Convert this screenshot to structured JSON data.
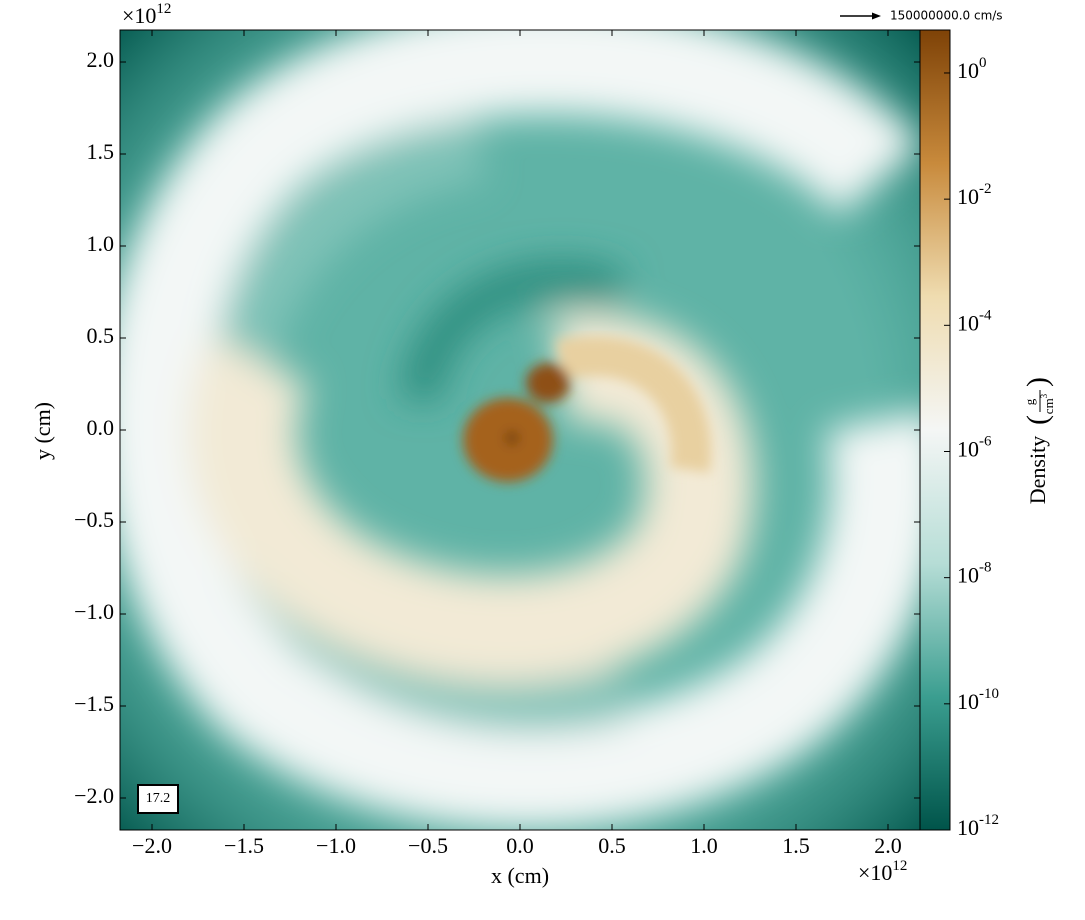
{
  "chart_data": {
    "type": "image",
    "xlabel": "x  (cm)",
    "ylabel": "y  (cm)",
    "x_offset": {
      "base": "×10",
      "exponent": "12"
    },
    "y_offset": {
      "base": "×10",
      "exponent": "12"
    },
    "xlim": [
      -2.174,
      2.174
    ],
    "ylim": [
      -2.174,
      2.174
    ],
    "xticks": [
      {
        "value": -2,
        "label": "−2.0"
      },
      {
        "value": -1.5,
        "label": "−1.5"
      },
      {
        "value": -1,
        "label": "−1.0"
      },
      {
        "value": -0.5,
        "label": "−0.5"
      },
      {
        "value": 0,
        "label": "0.0"
      },
      {
        "value": 0.5,
        "label": "0.5"
      },
      {
        "value": 1,
        "label": "1.0"
      },
      {
        "value": 1.5,
        "label": "1.5"
      },
      {
        "value": 2,
        "label": "2.0"
      }
    ],
    "yticks": [
      {
        "value": -2,
        "label": "−2.0"
      },
      {
        "value": -1.5,
        "label": "−1.5"
      },
      {
        "value": -1,
        "label": "−1.0"
      },
      {
        "value": -0.5,
        "label": "−0.5"
      },
      {
        "value": 0,
        "label": "0.0"
      },
      {
        "value": 0.5,
        "label": "0.5"
      },
      {
        "value": 1,
        "label": "1.0"
      },
      {
        "value": 1.5,
        "label": "1.5"
      },
      {
        "value": 2,
        "label": "2.0"
      }
    ],
    "colorbar_label": "Density",
    "colorbar_units": {
      "numerator": "g",
      "denominator": "cm",
      "exponent": "3"
    },
    "colorbar_log": true,
    "clim": [
      1e-12,
      4.8
    ],
    "colormap": [
      "#00544a",
      "#3b9e90",
      "#b6ddd6",
      "#f4f6f5",
      "#efdcb0",
      "#c88a3c",
      "#7e4207"
    ],
    "colorbar_ticks": [
      {
        "value": 1e-12,
        "label": "10",
        "exponent": "-12"
      },
      {
        "value": 1e-10,
        "label": "10",
        "exponent": "-10"
      },
      {
        "value": 1e-08,
        "label": "10",
        "exponent": "-8"
      },
      {
        "value": 1e-06,
        "label": "10",
        "exponent": "-6"
      },
      {
        "value": 0.0001,
        "label": "10",
        "exponent": "-4"
      },
      {
        "value": 0.01,
        "label": "10",
        "exponent": "-2"
      },
      {
        "value": 1,
        "label": "10",
        "exponent": "0"
      }
    ],
    "time_label": "17.2",
    "quiver_key": "150000000.0 cm/s"
  }
}
